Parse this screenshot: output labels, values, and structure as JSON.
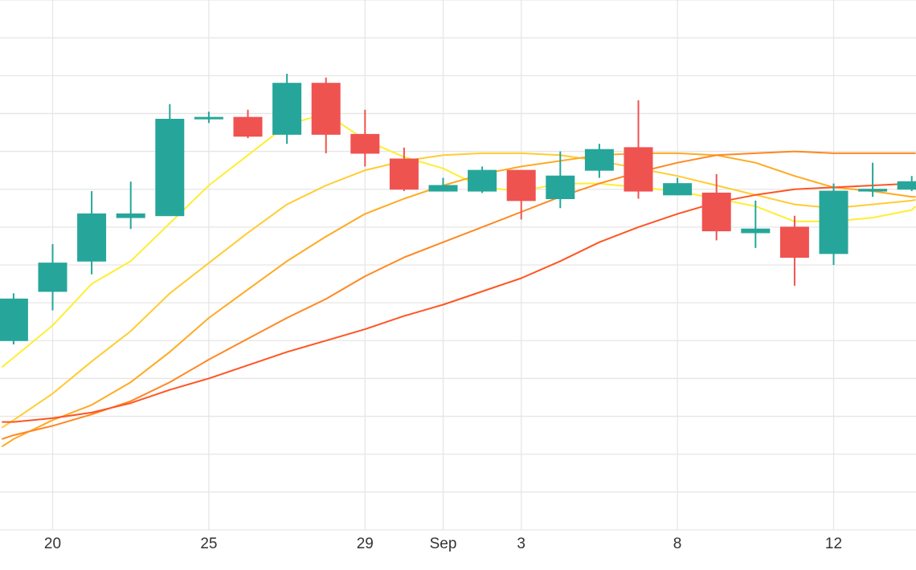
{
  "chart_data": {
    "type": "candlestick",
    "title": "",
    "xlabel": "",
    "ylabel": "",
    "ylim": [
      0,
      14
    ],
    "grid": true,
    "legend": "none",
    "x_ticks": [
      {
        "x": 20,
        "label": "20"
      },
      {
        "x": 24,
        "label": "25"
      },
      {
        "x": 28,
        "label": "29"
      },
      {
        "x": 30,
        "label": "Sep"
      },
      {
        "x": 32,
        "label": "3"
      },
      {
        "x": 36,
        "label": "8"
      },
      {
        "x": 40,
        "label": "12"
      }
    ],
    "candles": [
      {
        "x": 19,
        "open": 5.0,
        "high": 6.25,
        "low": 4.9,
        "close": 6.1
      },
      {
        "x": 20,
        "open": 6.3,
        "high": 7.55,
        "low": 5.8,
        "close": 7.05
      },
      {
        "x": 21,
        "open": 7.1,
        "high": 8.95,
        "low": 6.75,
        "close": 8.35
      },
      {
        "x": 22,
        "open": 8.25,
        "high": 9.2,
        "low": 7.95,
        "close": 8.35
      },
      {
        "x": 23,
        "open": 8.3,
        "high": 11.25,
        "low": 8.3,
        "close": 10.85
      },
      {
        "x": 24,
        "open": 10.9,
        "high": 11.05,
        "low": 10.75,
        "close": 10.9
      },
      {
        "x": 25,
        "open": 10.9,
        "high": 11.1,
        "low": 10.35,
        "close": 10.4
      },
      {
        "x": 26,
        "open": 10.45,
        "high": 12.05,
        "low": 10.2,
        "close": 11.8
      },
      {
        "x": 27,
        "open": 11.8,
        "high": 11.95,
        "low": 9.95,
        "close": 10.45
      },
      {
        "x": 28,
        "open": 10.45,
        "high": 11.1,
        "low": 9.6,
        "close": 9.95
      },
      {
        "x": 29,
        "open": 9.8,
        "high": 10.1,
        "low": 8.95,
        "close": 9.0
      },
      {
        "x": 30,
        "open": 8.95,
        "high": 9.3,
        "low": 8.95,
        "close": 9.1
      },
      {
        "x": 31,
        "open": 8.95,
        "high": 9.6,
        "low": 8.9,
        "close": 9.5
      },
      {
        "x": 32,
        "open": 9.5,
        "high": 9.5,
        "low": 8.2,
        "close": 8.7
      },
      {
        "x": 33,
        "open": 8.75,
        "high": 10.0,
        "low": 8.5,
        "close": 9.35
      },
      {
        "x": 34,
        "open": 9.5,
        "high": 10.2,
        "low": 9.3,
        "close": 10.05
      },
      {
        "x": 35,
        "open": 10.1,
        "high": 11.35,
        "low": 8.75,
        "close": 8.95
      },
      {
        "x": 36,
        "open": 8.85,
        "high": 9.3,
        "low": 8.85,
        "close": 9.15
      },
      {
        "x": 37,
        "open": 8.9,
        "high": 9.4,
        "low": 7.65,
        "close": 7.9
      },
      {
        "x": 38,
        "open": 7.85,
        "high": 8.7,
        "low": 7.45,
        "close": 7.95
      },
      {
        "x": 39,
        "open": 8.0,
        "high": 8.3,
        "low": 6.45,
        "close": 7.2
      },
      {
        "x": 40,
        "open": 7.3,
        "high": 9.15,
        "low": 7.0,
        "close": 8.95
      },
      {
        "x": 41,
        "open": 8.95,
        "high": 9.7,
        "low": 8.8,
        "close": 9.0
      },
      {
        "x": 42,
        "open": 9.0,
        "high": 9.35,
        "low": 8.95,
        "close": 9.2
      }
    ],
    "series": [
      {
        "type": "line",
        "color": "#ffee33",
        "x": [
          18.7,
          19,
          20,
          21,
          22,
          23,
          24,
          25,
          26,
          27,
          28,
          29,
          30,
          31,
          32,
          33,
          34,
          35,
          36,
          37,
          38,
          39,
          40,
          41,
          42,
          42.1
        ],
        "y": [
          4.3,
          4.55,
          5.4,
          6.5,
          7.1,
          8.1,
          9.1,
          9.9,
          10.7,
          11.0,
          10.3,
          9.85,
          9.55,
          9.05,
          8.95,
          9.15,
          9.15,
          9.05,
          8.95,
          8.75,
          8.55,
          8.15,
          8.15,
          8.25,
          8.45,
          8.55
        ]
      },
      {
        "type": "line",
        "color": "#ffcc33",
        "x": [
          18.7,
          19,
          20,
          21,
          22,
          23,
          24,
          25,
          26,
          27,
          28,
          29,
          30,
          31,
          32,
          33,
          34,
          35,
          36,
          37,
          38,
          39,
          40,
          41,
          42,
          42.1
        ],
        "y": [
          2.7,
          2.9,
          3.6,
          4.45,
          5.25,
          6.25,
          7.05,
          7.85,
          8.6,
          9.1,
          9.5,
          9.75,
          9.9,
          9.95,
          9.95,
          9.9,
          9.75,
          9.55,
          9.35,
          9.1,
          8.85,
          8.6,
          8.5,
          8.6,
          8.7,
          8.72
        ]
      },
      {
        "type": "line",
        "color": "#ffaa22",
        "x": [
          18.7,
          19,
          20,
          21,
          22,
          23,
          24,
          25,
          26,
          27,
          28,
          29,
          30,
          31,
          32,
          33,
          34,
          35,
          36,
          37,
          38,
          39,
          40,
          41,
          42,
          42.1
        ],
        "y": [
          2.2,
          2.4,
          2.9,
          3.3,
          3.9,
          4.7,
          5.6,
          6.35,
          7.1,
          7.75,
          8.35,
          8.75,
          9.1,
          9.4,
          9.6,
          9.75,
          9.9,
          9.95,
          9.95,
          9.9,
          9.7,
          9.35,
          9.05,
          8.95,
          8.8,
          8.8
        ]
      },
      {
        "type": "line",
        "color": "#ff8822",
        "x": [
          18.7,
          19,
          20,
          21,
          22,
          23,
          24,
          25,
          26,
          27,
          28,
          29,
          30,
          31,
          32,
          33,
          34,
          35,
          36,
          37,
          38,
          39,
          40,
          41,
          42,
          42.1
        ],
        "y": [
          2.4,
          2.5,
          2.75,
          3.05,
          3.4,
          3.9,
          4.5,
          5.05,
          5.6,
          6.1,
          6.7,
          7.2,
          7.6,
          8.0,
          8.4,
          8.8,
          9.15,
          9.45,
          9.7,
          9.9,
          9.95,
          10.0,
          9.95,
          9.95,
          9.95,
          9.95
        ]
      },
      {
        "type": "line",
        "color": "#ff5522",
        "x": [
          18.7,
          19,
          20,
          21,
          22,
          23,
          24,
          25,
          26,
          27,
          28,
          29,
          30,
          31,
          32,
          33,
          34,
          35,
          36,
          37,
          38,
          39,
          40,
          41,
          42,
          42.1
        ],
        "y": [
          2.85,
          2.85,
          2.95,
          3.1,
          3.35,
          3.7,
          4.0,
          4.35,
          4.7,
          5.0,
          5.3,
          5.65,
          5.95,
          6.3,
          6.65,
          7.1,
          7.6,
          8.0,
          8.35,
          8.65,
          8.85,
          9.0,
          9.05,
          9.1,
          9.15,
          9.2
        ]
      }
    ],
    "colors": {
      "increasing": "#26a69a",
      "decreasing": "#ef5350",
      "grid": "#e6e6e6",
      "text": "#333333"
    }
  }
}
